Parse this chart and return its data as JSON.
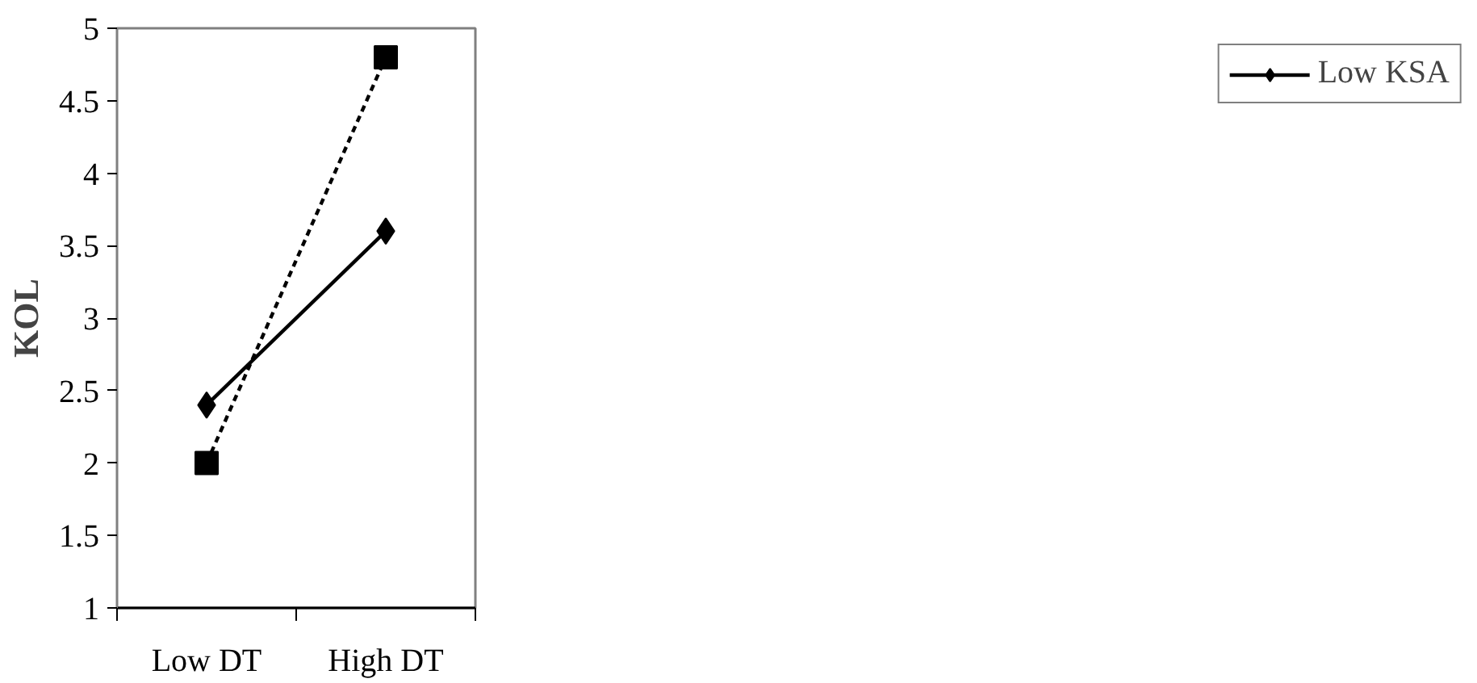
{
  "chart_data": {
    "type": "line",
    "ylabel": "KOL",
    "categories": [
      "Low DT",
      "High DT"
    ],
    "series": [
      {
        "name": "Low KSA",
        "color": "#000000",
        "values": [
          2.4,
          3.6
        ],
        "marker": "diamond",
        "line_style": "solid"
      },
      {
        "color": "#000000",
        "values": [
          2.0,
          4.8
        ],
        "marker": "square",
        "line_style": "dashed"
      }
    ],
    "ylim": [
      1,
      5
    ],
    "yticks": [
      1,
      1.5,
      2,
      2.5,
      3,
      3.5,
      4,
      4.5,
      5
    ],
    "grid": false,
    "legend": "right"
  }
}
